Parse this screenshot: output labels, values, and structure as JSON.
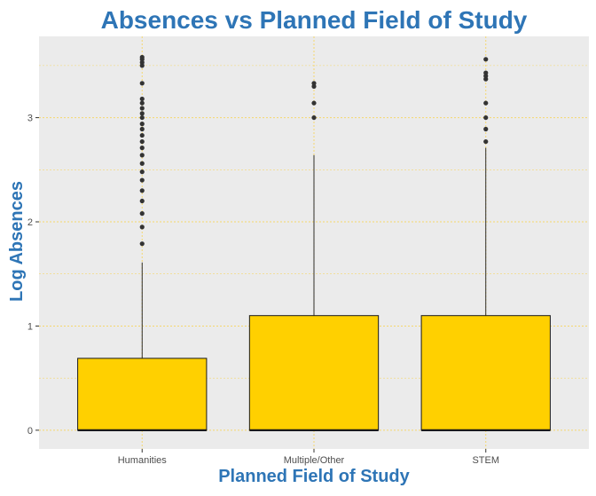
{
  "chart_data": {
    "type": "boxplot",
    "title": "Absences vs Planned Field of Study",
    "xlabel": "Planned Field of Study",
    "ylabel": "Log Absences",
    "categories": [
      "Humanities",
      "Multiple/Other",
      "STEM"
    ],
    "ylim": [
      -0.18,
      3.78
    ],
    "yticks": [
      0,
      1,
      2,
      3
    ],
    "grid": true,
    "legend": "none",
    "boxes": [
      {
        "category": "Humanities",
        "min": 0,
        "q1": 0,
        "median": 0,
        "q3": 0.69,
        "whisker_high": 1.61,
        "outliers": [
          1.79,
          1.95,
          2.08,
          2.2,
          2.3,
          2.4,
          2.48,
          2.56,
          2.64,
          2.71,
          2.77,
          2.83,
          2.89,
          2.94,
          3.0,
          3.04,
          3.09,
          3.14,
          3.18,
          3.33,
          3.5,
          3.53,
          3.56,
          3.58
        ]
      },
      {
        "category": "Multiple/Other",
        "min": 0,
        "q1": 0,
        "median": 0,
        "q3": 1.1,
        "whisker_high": 2.64,
        "outliers": [
          3.0,
          3.14,
          3.3,
          3.33
        ]
      },
      {
        "category": "STEM",
        "min": 0,
        "q1": 0,
        "median": 0,
        "q3": 1.1,
        "whisker_high": 2.71,
        "outliers": [
          2.77,
          2.89,
          3.0,
          3.14,
          3.37,
          3.4,
          3.43,
          3.56
        ]
      }
    ],
    "colors": {
      "box_fill": "#FFD000",
      "box_stroke": "#1a1a1a",
      "panel_bg": "#EBEBEB",
      "grid": "#F5D76E",
      "title": "#2E75B6",
      "outlier": "#333333"
    }
  }
}
